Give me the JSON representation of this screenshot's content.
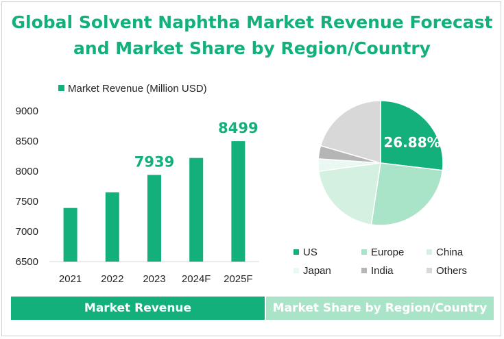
{
  "title": {
    "line1": "Global Solvent Naphtha Market Revenue Forecast",
    "line2": "and Market Share by Region/Country"
  },
  "colors": {
    "accent": "#13b07c",
    "accent_light": "#a9e3c8"
  },
  "chart_data": [
    {
      "type": "bar",
      "legend": "Market Revenue (Million USD)",
      "categories": [
        "2021",
        "2022",
        "2023",
        "2024F",
        "2025F"
      ],
      "values": [
        7390,
        7650,
        7939,
        8220,
        8499
      ],
      "data_labels": {
        "2023": "7939",
        "2025F": "8499"
      },
      "yticks": [
        "9000",
        "8500",
        "8000",
        "7500",
        "7000",
        "6500"
      ],
      "ylim": [
        6500,
        9000
      ],
      "color": "#13b07c"
    },
    {
      "type": "pie",
      "slices": [
        {
          "label": "US",
          "value": 26.88,
          "color": "#13b07c"
        },
        {
          "label": "Europe",
          "value": 25.5,
          "color": "#a9e3c8"
        },
        {
          "label": "China",
          "value": 20.5,
          "color": "#d3f0e1"
        },
        {
          "label": "Japan",
          "value": 3.2,
          "color": "#e9f8f0"
        },
        {
          "label": "India",
          "value": 3.4,
          "color": "#b5b5b5"
        },
        {
          "label": "Others",
          "value": 20.52,
          "color": "#d8d8d8"
        }
      ],
      "highlight_label": "26.88%"
    }
  ],
  "banners": {
    "left": "Market Revenue",
    "right": "Market Share by Region/Country"
  }
}
